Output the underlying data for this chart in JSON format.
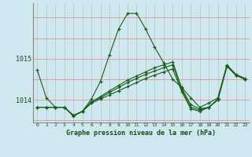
{
  "title": "Graphe pression niveau de la mer (hPa)",
  "bg_color": "#cfe8f0",
  "line_color": "#1a5c1a",
  "grid_color_v": "#c0c0c0",
  "grid_color_h": "#e88080",
  "ylim": [
    1013.45,
    1016.35
  ],
  "yticks": [
    1014.0,
    1015.0
  ],
  "xlim": [
    -0.5,
    23.5
  ],
  "xticks": [
    0,
    1,
    2,
    3,
    4,
    5,
    6,
    7,
    8,
    9,
    10,
    11,
    12,
    13,
    14,
    15,
    16,
    17,
    18,
    19,
    20,
    21,
    22,
    23
  ],
  "line1": [
    1014.72,
    1014.05,
    1013.82,
    1013.82,
    1013.6,
    1013.72,
    1014.02,
    1014.45,
    1015.1,
    1015.72,
    1016.1,
    1016.1,
    1015.72,
    1015.28,
    1014.9,
    1014.5,
    1014.3,
    1014.05,
    1013.82,
    1013.92,
    1014.05,
    1014.85,
    1014.62,
    1014.52
  ],
  "line2": [
    1013.82,
    1013.82,
    1013.82,
    1013.82,
    1013.62,
    1013.72,
    1013.95,
    1014.08,
    1014.22,
    1014.35,
    1014.48,
    1014.58,
    1014.68,
    1014.78,
    1014.85,
    1014.92,
    1014.28,
    1013.88,
    1013.78,
    1013.82,
    1014.02,
    1014.82,
    1014.6,
    1014.5
  ],
  "line3": [
    1013.82,
    1013.82,
    1013.82,
    1013.82,
    1013.62,
    1013.72,
    1013.95,
    1014.05,
    1014.18,
    1014.3,
    1014.42,
    1014.52,
    1014.62,
    1014.7,
    1014.78,
    1014.85,
    1014.25,
    1013.82,
    1013.75,
    1013.82,
    1014.0,
    1014.82,
    1014.6,
    1014.5
  ],
  "line4": [
    1013.82,
    1013.82,
    1013.82,
    1013.82,
    1013.62,
    1013.72,
    1013.92,
    1014.02,
    1014.12,
    1014.22,
    1014.32,
    1014.42,
    1014.52,
    1014.6,
    1014.68,
    1014.75,
    1014.2,
    1013.78,
    1013.72,
    1013.82,
    1014.0,
    1014.82,
    1014.6,
    1014.5
  ]
}
